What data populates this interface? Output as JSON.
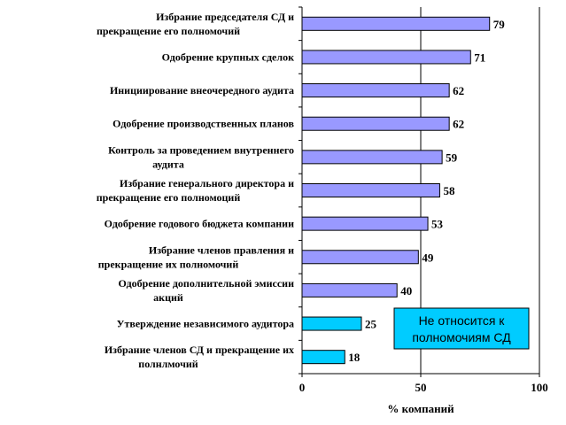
{
  "chart_data": {
    "type": "bar",
    "orientation": "horizontal",
    "categories": [
      [
        "Избрание председателя СД и",
        "прекращение его полномочий"
      ],
      [
        "Одобрение крупных сделок"
      ],
      [
        "Инициирование внеочередного аудита"
      ],
      [
        "Одобрение производственных планов"
      ],
      [
        "Контроль за проведением внутреннего",
        "аудита"
      ],
      [
        "Избрание генерального директора и",
        "прекращение его полномоций"
      ],
      [
        "Одобрение годового бюджета компании"
      ],
      [
        "Избрание членов правления и",
        "прекращение их полномочий"
      ],
      [
        "Одобрение дополнительной эмиссии",
        "акций"
      ],
      [
        "Утверждение независимого аудитора"
      ],
      [
        "Избрание членов СД и прекращение их",
        "полнлмочий"
      ]
    ],
    "values": [
      79,
      71,
      62,
      62,
      59,
      58,
      53,
      49,
      40,
      25,
      18
    ],
    "bar_group": [
      "sd",
      "sd",
      "sd",
      "sd",
      "sd",
      "sd",
      "sd",
      "sd",
      "sd",
      "not_sd",
      "not_sd"
    ],
    "colors": {
      "sd": "#9999ff",
      "not_sd": "#00ccff",
      "note_box": "#00ccff"
    },
    "xlabel": "% компаний",
    "xlim": [
      0,
      100
    ],
    "xticks": [
      0,
      50,
      100
    ],
    "grid": "vertical",
    "legend": "none"
  },
  "note": {
    "lines": [
      "Не относится к",
      "полномочиям СД"
    ]
  }
}
